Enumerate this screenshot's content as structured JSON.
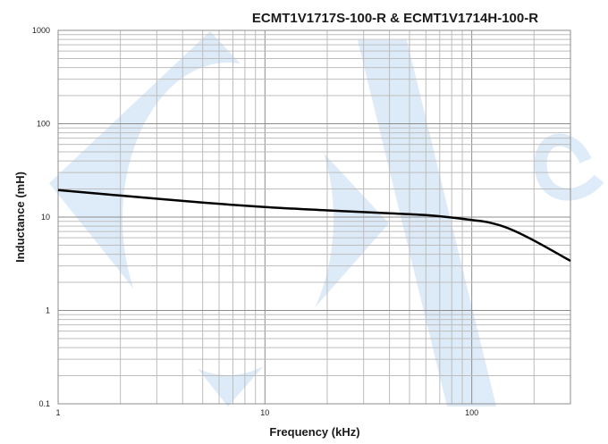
{
  "chart_data": {
    "type": "line",
    "title": "ECMT1V1717S-100-R & ECMT1V1714H-100-R",
    "xlabel": "Frequency (kHz)",
    "ylabel": "Inductance (mH)",
    "x_scale": "log",
    "y_scale": "log",
    "xlim": [
      1,
      300
    ],
    "ylim": [
      0.1,
      1000
    ],
    "x_ticks": [
      "1",
      "10",
      "100"
    ],
    "y_ticks": [
      "0.1",
      "1",
      "10",
      "100",
      "1000"
    ],
    "grid": true,
    "legend": "none",
    "series": [
      {
        "color": "#000000",
        "x": [
          1,
          2,
          5,
          10,
          20,
          40,
          60,
          80,
          100,
          120,
          150,
          200,
          300
        ],
        "y": [
          19.5,
          17.0,
          14.3,
          12.8,
          11.8,
          11.0,
          10.5,
          9.9,
          9.3,
          8.8,
          7.6,
          5.6,
          3.4
        ]
      }
    ]
  }
}
